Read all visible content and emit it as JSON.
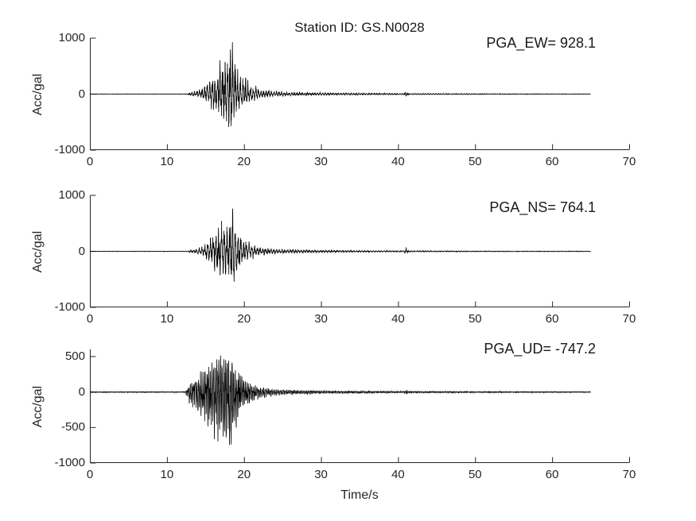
{
  "figure": {
    "title": "Station ID: GS.N0028",
    "xlabel": "Time/s",
    "ylabel": "Acc/gal",
    "background_color": "#ffffff",
    "axis_color": "#262626",
    "trace_color": "#000000",
    "text_color": "#1a1a1a"
  },
  "chart_data": [
    {
      "type": "line",
      "channel": "EW",
      "pga_label": "PGA_EW= 928.1",
      "pga_gal": 928.1,
      "pga_time_s": 18.4,
      "xlim": [
        0,
        70
      ],
      "ylim": [
        -1000,
        1000
      ],
      "xticks": [
        0,
        10,
        20,
        30,
        40,
        50,
        60,
        70
      ],
      "yticks": [
        1000,
        0,
        -1000
      ],
      "signal_end_s": 65,
      "quiet_until_s": 12.8,
      "event_window_s": [
        13,
        22
      ],
      "minor_spike_s": 41,
      "min_peak_gal": -650,
      "synthesis": {
        "seed": 11,
        "freq_hz": [
          3.0,
          7.5
        ],
        "pos_scale": 1.0,
        "neg_scale": 0.72,
        "envelope_gal": [
          [
            0,
            4
          ],
          [
            12.6,
            4
          ],
          [
            12.9,
            20
          ],
          [
            13.8,
            40
          ],
          [
            14.8,
            90
          ],
          [
            15.4,
            170
          ],
          [
            16.0,
            280
          ],
          [
            16.7,
            340
          ],
          [
            17.3,
            430
          ],
          [
            17.9,
            520
          ],
          [
            18.35,
            680
          ],
          [
            18.7,
            500
          ],
          [
            19.2,
            320
          ],
          [
            19.8,
            230
          ],
          [
            20.6,
            150
          ],
          [
            21.5,
            100
          ],
          [
            22.5,
            60
          ],
          [
            24,
            38
          ],
          [
            26,
            28
          ],
          [
            29,
            20
          ],
          [
            33,
            15
          ],
          [
            37,
            12
          ],
          [
            40.7,
            10
          ],
          [
            41.05,
            42
          ],
          [
            41.4,
            10
          ],
          [
            45,
            8
          ],
          [
            50,
            7
          ],
          [
            56,
            6
          ],
          [
            61,
            5
          ],
          [
            65,
            5
          ]
        ]
      }
    },
    {
      "type": "line",
      "channel": "NS",
      "pga_label": "PGA_NS= 764.1",
      "pga_gal": 764.1,
      "pga_time_s": 18.5,
      "xlim": [
        0,
        70
      ],
      "ylim": [
        -1000,
        1000
      ],
      "xticks": [
        0,
        10,
        20,
        30,
        40,
        50,
        60,
        70
      ],
      "yticks": [
        1000,
        0,
        -1000
      ],
      "signal_end_s": 65,
      "quiet_until_s": 12.9,
      "event_window_s": [
        13,
        22
      ],
      "minor_spike_s": 41,
      "min_peak_gal": -750,
      "synthesis": {
        "seed": 22,
        "freq_hz": [
          2.8,
          7.0
        ],
        "pos_scale": 1.0,
        "neg_scale": 0.97,
        "envelope_gal": [
          [
            0,
            4
          ],
          [
            12.7,
            4
          ],
          [
            13.0,
            18
          ],
          [
            13.6,
            30
          ],
          [
            14.6,
            70
          ],
          [
            15.3,
            140
          ],
          [
            15.9,
            230
          ],
          [
            16.6,
            330
          ],
          [
            17.3,
            420
          ],
          [
            18.0,
            470
          ],
          [
            18.5,
            560
          ],
          [
            18.9,
            430
          ],
          [
            19.4,
            280
          ],
          [
            20.0,
            190
          ],
          [
            20.8,
            120
          ],
          [
            21.8,
            75
          ],
          [
            23,
            48
          ],
          [
            25,
            32
          ],
          [
            27.5,
            24
          ],
          [
            30,
            18
          ],
          [
            34,
            14
          ],
          [
            38,
            11
          ],
          [
            40.7,
            10
          ],
          [
            41.05,
            48
          ],
          [
            41.4,
            10
          ],
          [
            45,
            8
          ],
          [
            50,
            7
          ],
          [
            56,
            6
          ],
          [
            65,
            5
          ]
        ]
      }
    },
    {
      "type": "line",
      "channel": "UD",
      "pga_label": "PGA_UD= -747.2",
      "pga_gal": -747.2,
      "pga_time_s": 17.8,
      "xlim": [
        0,
        70
      ],
      "ylim": [
        -1000,
        600
      ],
      "xticks": [
        0,
        10,
        20,
        30,
        40,
        50,
        60,
        70
      ],
      "yticks": [
        500,
        0,
        -500,
        -1000
      ],
      "signal_end_s": 65,
      "quiet_until_s": 12.4,
      "event_window_s": [
        12.6,
        21
      ],
      "minor_spike_s": 41,
      "max_peak_gal": 560,
      "synthesis": {
        "seed": 33,
        "freq_hz": [
          4.6,
          10.5
        ],
        "pos_scale": 0.75,
        "neg_scale": 1.0,
        "envelope_gal": [
          [
            0,
            5
          ],
          [
            12.3,
            5
          ],
          [
            12.6,
            40
          ],
          [
            13.0,
            110
          ],
          [
            13.6,
            160
          ],
          [
            14.3,
            220
          ],
          [
            15.0,
            300
          ],
          [
            15.7,
            360
          ],
          [
            16.4,
            400
          ],
          [
            17.0,
            430
          ],
          [
            17.8,
            560
          ],
          [
            18.4,
            430
          ],
          [
            19.0,
            300
          ],
          [
            19.6,
            200
          ],
          [
            20.3,
            130
          ],
          [
            21.2,
            80
          ],
          [
            22.2,
            55
          ],
          [
            23.5,
            38
          ],
          [
            25,
            28
          ],
          [
            27,
            22
          ],
          [
            29.5,
            17
          ],
          [
            33,
            13
          ],
          [
            37,
            11
          ],
          [
            40.7,
            9
          ],
          [
            41.05,
            30
          ],
          [
            41.4,
            9
          ],
          [
            45,
            8
          ],
          [
            50,
            7
          ],
          [
            56,
            6
          ],
          [
            65,
            5
          ]
        ]
      }
    }
  ]
}
